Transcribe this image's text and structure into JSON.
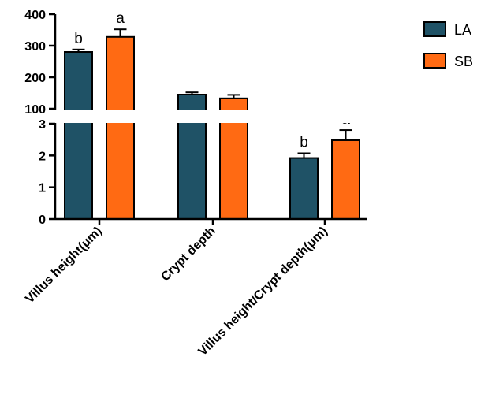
{
  "chart_data": {
    "type": "bar",
    "categories": [
      "Villus height(μm)",
      "Crypt depth",
      "Villus height/Crypt depth(μm)"
    ],
    "series": [
      {
        "name": "LA",
        "color": "#1f5266",
        "values": [
          280,
          145,
          1.92
        ],
        "errors": [
          8,
          7,
          0.15
        ],
        "sig_labels": [
          "b",
          "",
          "b"
        ]
      },
      {
        "name": "SB",
        "color": "#ff6a13",
        "values": [
          328,
          133,
          2.48
        ],
        "errors": [
          24,
          11,
          0.32
        ],
        "sig_labels": [
          "a",
          "",
          "a"
        ]
      }
    ],
    "axis_segments": [
      {
        "range": [
          100,
          400
        ],
        "ticks": [
          "100",
          "200",
          "300",
          "400"
        ]
      },
      {
        "range": [
          0,
          3
        ],
        "ticks": [
          "0",
          "1",
          "2",
          "3"
        ]
      }
    ],
    "broken_axis": true,
    "xlabel": "",
    "ylabel": "",
    "legend_position": "top-right",
    "grid": false
  }
}
